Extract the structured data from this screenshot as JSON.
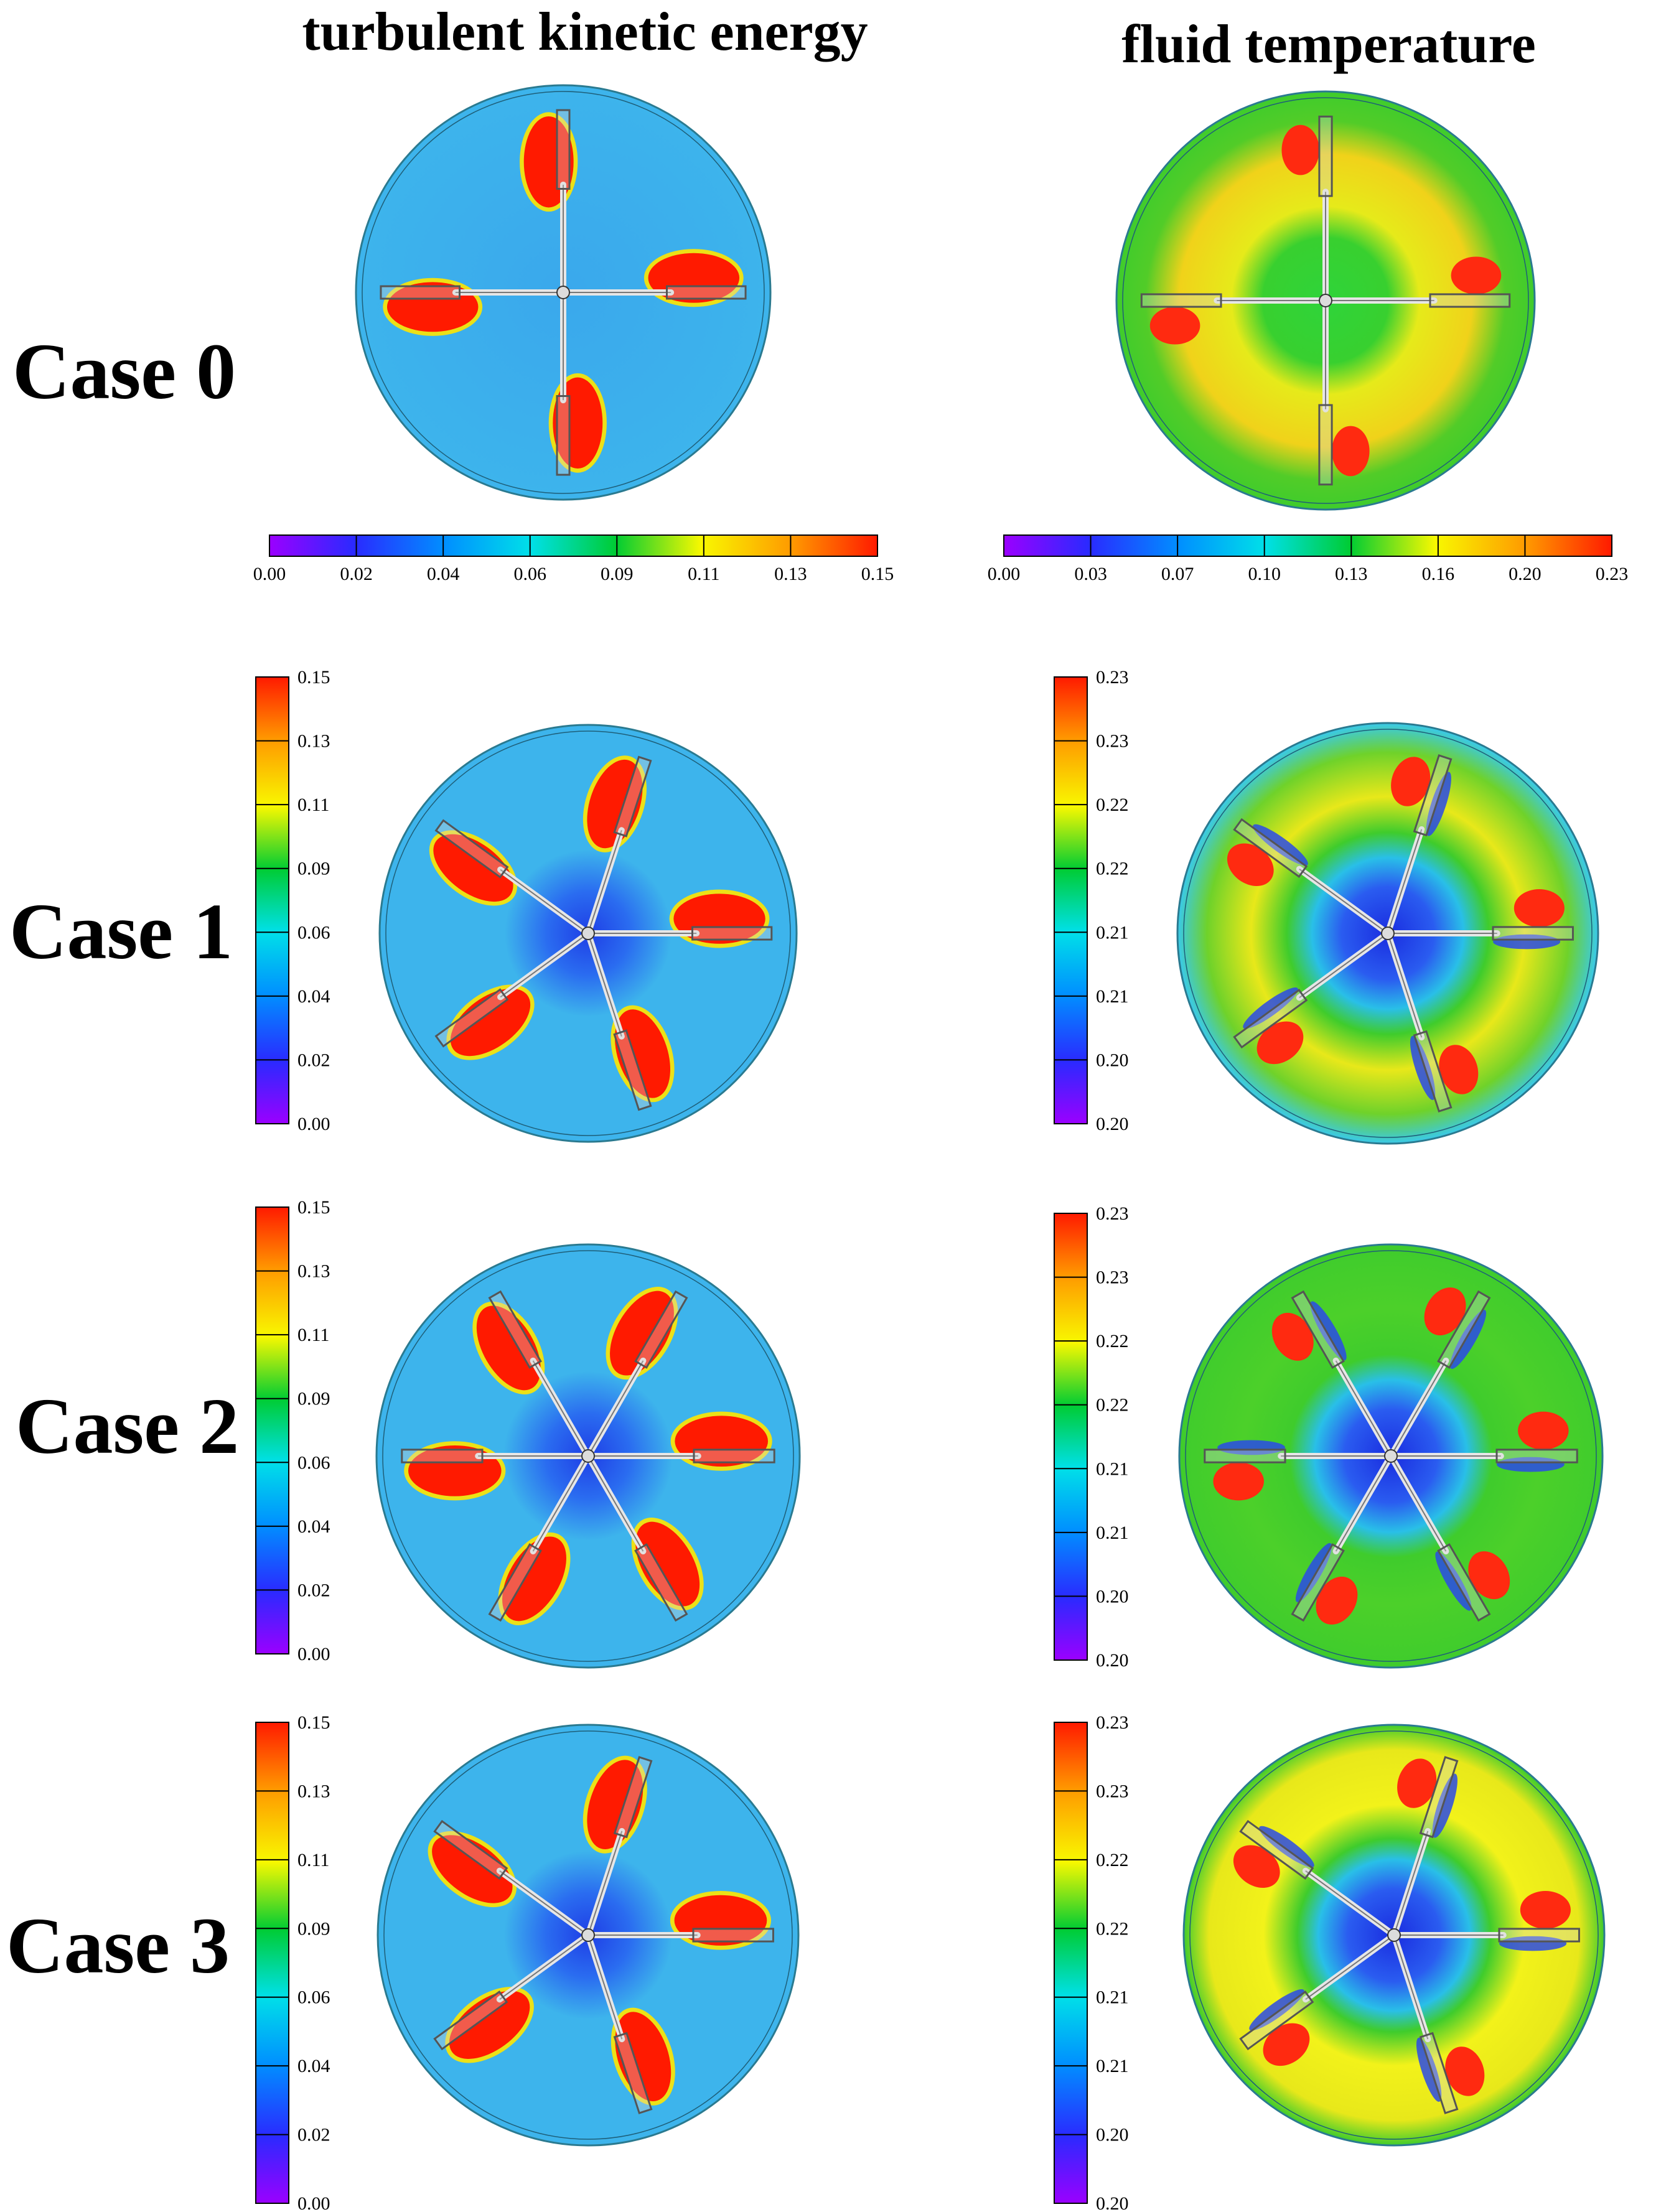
{
  "headers": {
    "left": "turbulent kinetic energy",
    "right": "fluid temperature"
  },
  "cases": [
    {
      "label": "Case 0",
      "blades": 4
    },
    {
      "label": "Case 1",
      "blades": 5
    },
    {
      "label": "Case 2",
      "blades": 6
    },
    {
      "label": "Case 3",
      "blades": 5
    }
  ],
  "colorbars": {
    "case0_tke": [
      "0.00",
      "0.02",
      "0.04",
      "0.06",
      "0.09",
      "0.11",
      "0.13",
      "0.15"
    ],
    "case0_temp": [
      "0.00",
      "0.03",
      "0.07",
      "0.10",
      "0.13",
      "0.16",
      "0.20",
      "0.23"
    ],
    "tke": [
      "0.15",
      "0.13",
      "0.11",
      "0.09",
      "0.06",
      "0.04",
      "0.02",
      "0.00"
    ],
    "temp": [
      "0.23",
      "0.23",
      "0.22",
      "0.22",
      "0.21",
      "0.21",
      "0.20",
      "0.20"
    ]
  },
  "colormap": [
    "#9b00ff",
    "#2a2aff",
    "#0090ff",
    "#00e0e8",
    "#00cc33",
    "#f8f800",
    "#ff9900",
    "#ff1a00"
  ],
  "colors": {
    "tke_field": "#3db4ec",
    "tke_hot": "#ff1a00",
    "temp_field_green": "#3fcc2c",
    "temp_field_cyan": "#39c9ea",
    "hub_blue": "#1f3fe6",
    "shaft": "#e6e6e6"
  }
}
